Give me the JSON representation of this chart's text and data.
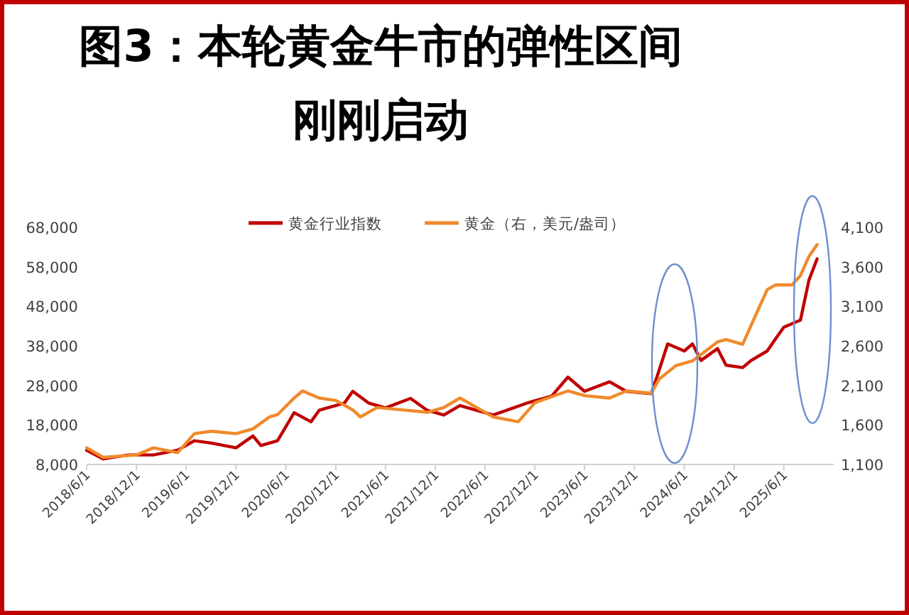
{
  "chart_data": {
    "type": "line",
    "title": "图3：本轮黄金牛市的弹性区间刚刚启动",
    "xlim": [
      "2018-06-01",
      "2025-12-01"
    ],
    "xticks": [
      {
        "value": "2018-06-01",
        "label": "2018/6/1"
      },
      {
        "value": "2018-12-01",
        "label": "2018/12/1"
      },
      {
        "value": "2019-06-01",
        "label": "2019/6/1"
      },
      {
        "value": "2019-12-01",
        "label": "2019/12/1"
      },
      {
        "value": "2020-06-01",
        "label": "2020/6/1"
      },
      {
        "value": "2020-12-01",
        "label": "2020/12/1"
      },
      {
        "value": "2021-06-01",
        "label": "2021/6/1"
      },
      {
        "value": "2021-12-01",
        "label": "2021/12/1"
      },
      {
        "value": "2022-06-01",
        "label": "2022/6/1"
      },
      {
        "value": "2022-12-01",
        "label": "2022/12/1"
      },
      {
        "value": "2023-06-01",
        "label": "2023/6/1"
      },
      {
        "value": "2023-12-01",
        "label": "2023/12/1"
      },
      {
        "value": "2024-06-01",
        "label": "2024/6/1"
      },
      {
        "value": "2024-12-01",
        "label": "2024/12/1"
      },
      {
        "value": "2025-06-01",
        "label": "2025/6/1"
      }
    ],
    "ylim": [
      8000,
      68000
    ],
    "yticks": [
      {
        "value": 8000,
        "label": "8,000"
      },
      {
        "value": 18000,
        "label": "18,000"
      },
      {
        "value": 28000,
        "label": "28,000"
      },
      {
        "value": 38000,
        "label": "38,000"
      },
      {
        "value": 48000,
        "label": "48,000"
      },
      {
        "value": 58000,
        "label": "58,000"
      },
      {
        "value": 68000,
        "label": "68,000"
      }
    ],
    "y2lim": [
      1100,
      4100
    ],
    "y2ticks": [
      {
        "value": 1100,
        "label": "1,100"
      },
      {
        "value": 1600,
        "label": "1,600"
      },
      {
        "value": 2100,
        "label": "2,100"
      },
      {
        "value": 2600,
        "label": "2,600"
      },
      {
        "value": 3100,
        "label": "3,100"
      },
      {
        "value": 3600,
        "label": "3,600"
      },
      {
        "value": 4100,
        "label": "4,100"
      }
    ],
    "grid": false,
    "legend": "top",
    "marker": "none",
    "line_style": "solid",
    "series": [
      {
        "name": "黄金行业指数",
        "color": "#c00000",
        "x": [
          "2018-06",
          "2018-08",
          "2018-11",
          "2019-02",
          "2019-05",
          "2019-07",
          "2019-09",
          "2019-12",
          "2020-02",
          "2020-03",
          "2020-05",
          "2020-07",
          "2020-09",
          "2020-10",
          "2021-01",
          "2021-02",
          "2021-04",
          "2021-06",
          "2021-09",
          "2021-11",
          "2022-01",
          "2022-03",
          "2022-07",
          "2022-11",
          "2023-02",
          "2023-04",
          "2023-06",
          "2023-09",
          "2023-11",
          "2024-02",
          "2024-03",
          "2024-04",
          "2024-06",
          "2024-07",
          "2024-08",
          "2024-10",
          "2024-11",
          "2025-01",
          "2025-02",
          "2025-04",
          "2025-05",
          "2025-06",
          "2025-08",
          "2025-09",
          "2025-10"
        ],
        "values": [
          11600,
          9400,
          10400,
          10400,
          11600,
          14000,
          13400,
          12200,
          15200,
          12800,
          14000,
          21100,
          18800,
          21700,
          23500,
          26500,
          23500,
          22300,
          24700,
          21700,
          20500,
          22900,
          20500,
          23500,
          25300,
          30100,
          26500,
          28900,
          26500,
          25900,
          31900,
          38500,
          36700,
          38500,
          34300,
          37300,
          33100,
          32500,
          34300,
          36700,
          39700,
          42700,
          44500,
          54600,
          60000
        ]
      },
      {
        "name": "黄金（右，美元/盎司）",
        "color": "#f08a2c",
        "axis": "y2",
        "x": [
          "2018-06",
          "2018-08",
          "2018-12",
          "2019-02",
          "2019-05",
          "2019-07",
          "2019-09",
          "2019-12",
          "2020-02",
          "2020-04",
          "2020-05",
          "2020-07",
          "2020-08",
          "2020-10",
          "2020-12",
          "2021-02",
          "2021-03",
          "2021-05",
          "2021-08",
          "2021-11",
          "2022-01",
          "2022-03",
          "2022-04",
          "2022-07",
          "2022-10",
          "2022-12",
          "2023-04",
          "2023-06",
          "2023-09",
          "2023-11",
          "2024-02",
          "2024-03",
          "2024-05",
          "2024-07",
          "2024-10",
          "2024-11",
          "2025-01",
          "2025-02",
          "2025-04",
          "2025-05",
          "2025-07",
          "2025-08",
          "2025-09",
          "2025-10"
        ],
        "values": [
          1310,
          1190,
          1220,
          1310,
          1250,
          1490,
          1520,
          1490,
          1550,
          1700,
          1730,
          1940,
          2030,
          1940,
          1910,
          1790,
          1700,
          1820,
          1790,
          1760,
          1820,
          1940,
          1880,
          1700,
          1640,
          1880,
          2030,
          1970,
          1940,
          2030,
          2000,
          2180,
          2350,
          2410,
          2650,
          2680,
          2620,
          2860,
          3310,
          3370,
          3370,
          3490,
          3730,
          3880
        ]
      }
    ]
  }
}
